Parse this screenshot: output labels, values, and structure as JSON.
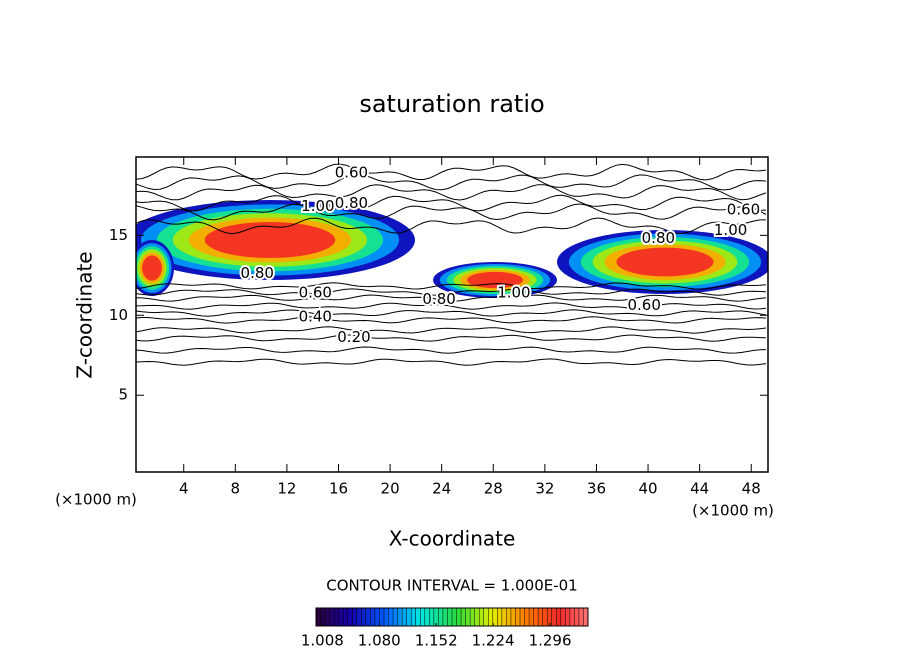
{
  "chart_data": {
    "type": "contour",
    "title": "saturation ratio",
    "xlabel": "X-coordinate",
    "ylabel": "Z-coordinate",
    "xunit": "(×1000 m)",
    "yunit": "(×1000 m)",
    "xlim": [
      0.3,
      49.3
    ],
    "ylim": [
      0.2,
      19.9
    ],
    "xticks": [
      4,
      8,
      12,
      16,
      20,
      24,
      28,
      32,
      36,
      40,
      44,
      48
    ],
    "yticks": [
      5,
      10,
      15
    ],
    "contour_labels": [
      {
        "x": 17.0,
        "y": 18.9,
        "value": 0.6,
        "label": "0.60"
      },
      {
        "x": 14.4,
        "y": 16.8,
        "value": 1.0,
        "label": "1.00"
      },
      {
        "x": 17.0,
        "y": 17.0,
        "value": 0.8,
        "label": "0.80"
      },
      {
        "x": 47.4,
        "y": 16.6,
        "value": 0.6,
        "label": "0.60"
      },
      {
        "x": 40.8,
        "y": 14.8,
        "value": 0.8,
        "label": "0.80"
      },
      {
        "x": 46.4,
        "y": 15.3,
        "value": 1.0,
        "label": "1.00"
      },
      {
        "x": 9.7,
        "y": 12.6,
        "value": 0.8,
        "label": "0.80"
      },
      {
        "x": 14.2,
        "y": 11.4,
        "value": 0.6,
        "label": "0.60"
      },
      {
        "x": 14.2,
        "y": 9.9,
        "value": 0.4,
        "label": "0.40"
      },
      {
        "x": 17.2,
        "y": 8.6,
        "value": 0.2,
        "label": "0.20"
      },
      {
        "x": 23.8,
        "y": 11.0,
        "value": 0.8,
        "label": "0.80"
      },
      {
        "x": 29.6,
        "y": 11.4,
        "value": 1.0,
        "label": "1.00"
      },
      {
        "x": 39.7,
        "y": 10.6,
        "value": 0.6,
        "label": "0.60"
      }
    ],
    "interval_text": "CONTOUR INTERVAL = 1.000E-01",
    "colorbar": {
      "clim": [
        1.0,
        1.344
      ],
      "ticks": [
        1.008,
        {
          "value": 1.08,
          "label": "1.080"
        },
        1.152,
        1.224,
        1.296
      ]
    }
  }
}
